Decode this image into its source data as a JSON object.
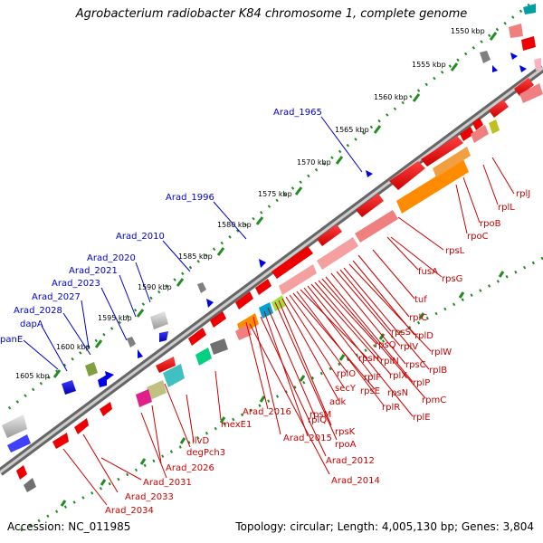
{
  "title": "Agrobacterium radiobacter K84 chromosome 1, complete genome",
  "footer": {
    "accession": "Accession: NC_011985",
    "summary": "Topology: circular; Length: 4,005,130 bp; Genes: 3,804"
  },
  "colors": {
    "backbone": "#808080",
    "forward_labels": "#0000cc",
    "reverse_labels": "#cc0000",
    "tick_dots": "#228b22",
    "forward_gene": "#0000ee",
    "reverse_gene": "#ee0000",
    "rrna": "#ff8800"
  },
  "kbp_ticks": [
    "1550 kbp",
    "1555 kbp",
    "1560 kbp",
    "1565 kbp",
    "1570 kbp",
    "1575 kbp",
    "1580 kbp",
    "1585 kbp",
    "1590 kbp",
    "1595 kbp",
    "1600 kbp",
    "1605 kbp"
  ],
  "forward_labels": [
    "Arad_1965",
    "Arad_1996",
    "Arad_2010",
    "Arad_2020",
    "Arad_2021",
    "Arad_2023",
    "Arad_2027",
    "Arad_2028",
    "dapA",
    "panE"
  ],
  "reverse_labels": [
    "rplJ",
    "rplL",
    "rpoB",
    "rpoC",
    "rpsL",
    "rpsG",
    "fusA",
    "tuf",
    "rplC",
    "rplD",
    "rplW",
    "rplB",
    "rpsS",
    "rplV",
    "rpsC",
    "rplP",
    "rpmC",
    "rpsQ",
    "rplN",
    "rplX",
    "rpsN",
    "rplE",
    "rplF",
    "rpsH",
    "rplR",
    "rpsE",
    "rplO",
    "secY",
    "adk",
    "rpsM",
    "rpsK",
    "rplQ",
    "rpoA",
    "Arad_2015",
    "Arad_2016",
    "Arad_2012",
    "Arad_2014",
    "mexE1",
    "ilvD",
    "degPch3",
    "Arad_2026",
    "Arad_2031",
    "Arad_2033",
    "Arad_2034"
  ]
}
